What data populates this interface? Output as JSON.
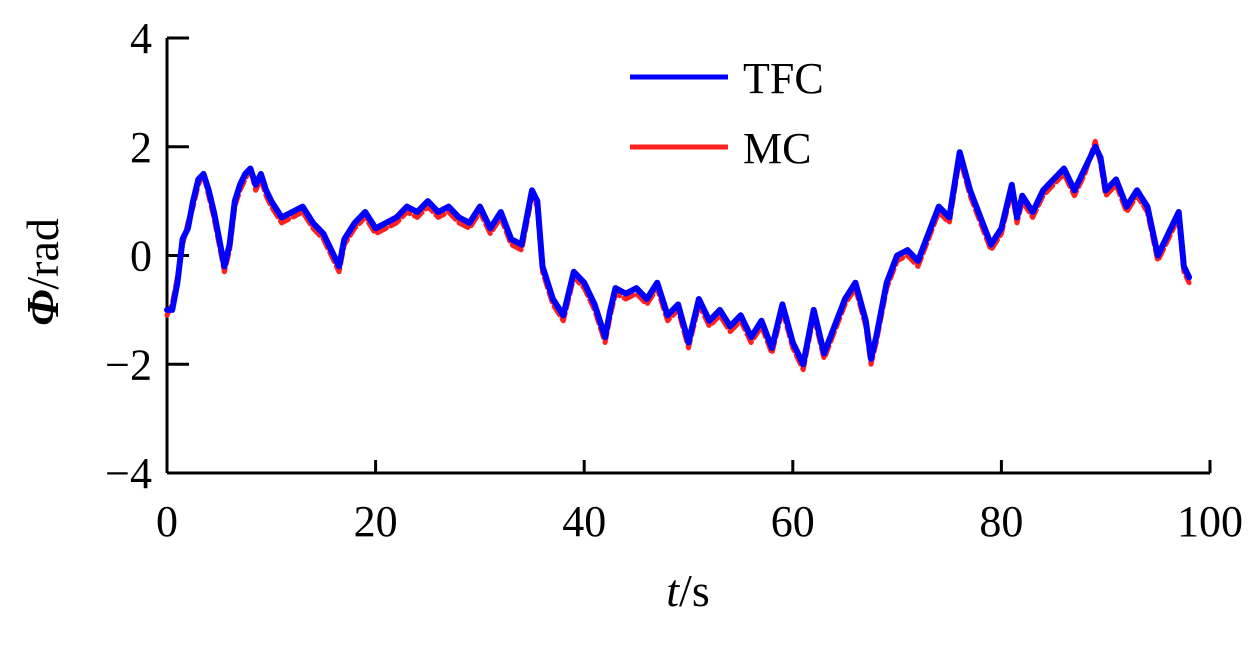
{
  "chart_data": {
    "type": "line",
    "title": "",
    "xlabel": {
      "var": "t",
      "unit": "s"
    },
    "ylabel": {
      "var": "Φ",
      "unit": "rad"
    },
    "xlim": [
      0,
      100
    ],
    "ylim": [
      -4,
      4
    ],
    "xticks": [
      0,
      20,
      40,
      60,
      80,
      100
    ],
    "yticks": [
      4,
      2,
      0,
      -2,
      -4
    ],
    "ytick_labels": [
      "4",
      "2",
      "0",
      "−2",
      "−4"
    ],
    "grid": false,
    "legend_position": "top-center",
    "series": [
      {
        "name": "TFC",
        "color": "#0000ff",
        "x": [
          0,
          0.5,
          1,
          1.5,
          2,
          2.5,
          3,
          3.5,
          4,
          4.5,
          5,
          5.5,
          6,
          6.5,
          7,
          7.5,
          8,
          8.5,
          9,
          9.5,
          10,
          11,
          12,
          13,
          14,
          15,
          16,
          16.5,
          17,
          18,
          19,
          20,
          21,
          22,
          23,
          24,
          25,
          26,
          27,
          28,
          29,
          30,
          31,
          32,
          33,
          34,
          35,
          35.5,
          36,
          37,
          38,
          38.5,
          39,
          40,
          41,
          42,
          42.5,
          43,
          44,
          45,
          46,
          47,
          48,
          49,
          50,
          51,
          52,
          53,
          54,
          55,
          56,
          57,
          58,
          59,
          60,
          61,
          62,
          63,
          64,
          65,
          66,
          67,
          67.5,
          68,
          69,
          70,
          71,
          72,
          73,
          74,
          75,
          76,
          77,
          78,
          79,
          80,
          81,
          81.5,
          82,
          83,
          84,
          85,
          86,
          87,
          88,
          89,
          89.5,
          90,
          91,
          92,
          93,
          94,
          95,
          96,
          97,
          97.5,
          98
        ],
        "y": [
          -1.0,
          -1.0,
          -0.5,
          0.3,
          0.5,
          1.0,
          1.4,
          1.5,
          1.2,
          0.8,
          0.3,
          -0.2,
          0.2,
          1.0,
          1.3,
          1.5,
          1.6,
          1.3,
          1.5,
          1.2,
          1.0,
          0.7,
          0.8,
          0.9,
          0.6,
          0.4,
          0.0,
          -0.2,
          0.3,
          0.6,
          0.8,
          0.5,
          0.6,
          0.7,
          0.9,
          0.8,
          1.0,
          0.8,
          0.9,
          0.7,
          0.6,
          0.9,
          0.5,
          0.8,
          0.3,
          0.2,
          1.2,
          1.0,
          -0.2,
          -0.8,
          -1.1,
          -0.7,
          -0.3,
          -0.5,
          -0.9,
          -1.5,
          -1.0,
          -0.6,
          -0.7,
          -0.6,
          -0.8,
          -0.5,
          -1.1,
          -0.9,
          -1.6,
          -0.8,
          -1.2,
          -1.0,
          -1.3,
          -1.1,
          -1.5,
          -1.2,
          -1.7,
          -0.9,
          -1.6,
          -2.0,
          -1.0,
          -1.8,
          -1.3,
          -0.8,
          -0.5,
          -1.2,
          -1.9,
          -1.5,
          -0.5,
          0.0,
          0.1,
          -0.1,
          0.4,
          0.9,
          0.7,
          1.9,
          1.2,
          0.7,
          0.2,
          0.5,
          1.3,
          0.7,
          1.1,
          0.8,
          1.2,
          1.4,
          1.6,
          1.2,
          1.6,
          2.0,
          1.8,
          1.2,
          1.4,
          0.9,
          1.2,
          0.9,
          0.0,
          0.4,
          0.8,
          -0.2,
          -0.4
        ]
      },
      {
        "name": "MC",
        "color": "#ff2020",
        "x": [
          0,
          0.5,
          1,
          1.5,
          2,
          2.5,
          3,
          3.5,
          4,
          4.5,
          5,
          5.5,
          6,
          6.5,
          7,
          7.5,
          8,
          8.5,
          9,
          9.5,
          10,
          11,
          12,
          13,
          14,
          15,
          16,
          16.5,
          17,
          18,
          19,
          20,
          21,
          22,
          23,
          24,
          25,
          26,
          27,
          28,
          29,
          30,
          31,
          32,
          33,
          34,
          35,
          35.5,
          36,
          37,
          38,
          38.5,
          39,
          40,
          41,
          42,
          42.5,
          43,
          44,
          45,
          46,
          47,
          48,
          49,
          50,
          51,
          52,
          53,
          54,
          55,
          56,
          57,
          58,
          59,
          60,
          61,
          62,
          63,
          64,
          65,
          66,
          67,
          67.5,
          68,
          69,
          70,
          71,
          72,
          73,
          74,
          75,
          76,
          77,
          78,
          79,
          80,
          81,
          81.5,
          82,
          83,
          84,
          85,
          86,
          87,
          88,
          89,
          89.5,
          90,
          91,
          92,
          93,
          94,
          95,
          96,
          97,
          97.5,
          98
        ],
        "y": [
          -1.1,
          -0.9,
          -0.4,
          0.2,
          0.6,
          0.9,
          1.3,
          1.5,
          1.1,
          0.7,
          0.2,
          -0.3,
          0.1,
          0.9,
          1.2,
          1.4,
          1.6,
          1.2,
          1.4,
          1.1,
          0.9,
          0.6,
          0.7,
          0.8,
          0.5,
          0.3,
          -0.1,
          -0.3,
          0.2,
          0.5,
          0.7,
          0.4,
          0.5,
          0.6,
          0.8,
          0.7,
          0.9,
          0.7,
          0.8,
          0.6,
          0.5,
          0.8,
          0.4,
          0.7,
          0.2,
          0.1,
          1.1,
          0.9,
          -0.3,
          -0.9,
          -1.2,
          -0.8,
          -0.4,
          -0.6,
          -1.0,
          -1.6,
          -1.1,
          -0.7,
          -0.8,
          -0.7,
          -0.9,
          -0.6,
          -1.2,
          -1.0,
          -1.7,
          -0.9,
          -1.3,
          -1.1,
          -1.4,
          -1.2,
          -1.6,
          -1.3,
          -1.8,
          -1.0,
          -1.7,
          -2.1,
          -1.1,
          -1.9,
          -1.4,
          -0.9,
          -0.6,
          -1.3,
          -2.0,
          -1.6,
          -0.6,
          -0.1,
          0.0,
          -0.2,
          0.3,
          0.8,
          0.6,
          1.8,
          1.1,
          0.6,
          0.1,
          0.4,
          1.2,
          0.6,
          1.0,
          0.7,
          1.1,
          1.3,
          1.5,
          1.1,
          1.5,
          2.1,
          1.7,
          1.1,
          1.3,
          0.8,
          1.1,
          0.8,
          -0.1,
          0.3,
          0.7,
          -0.3,
          -0.5
        ]
      }
    ]
  }
}
